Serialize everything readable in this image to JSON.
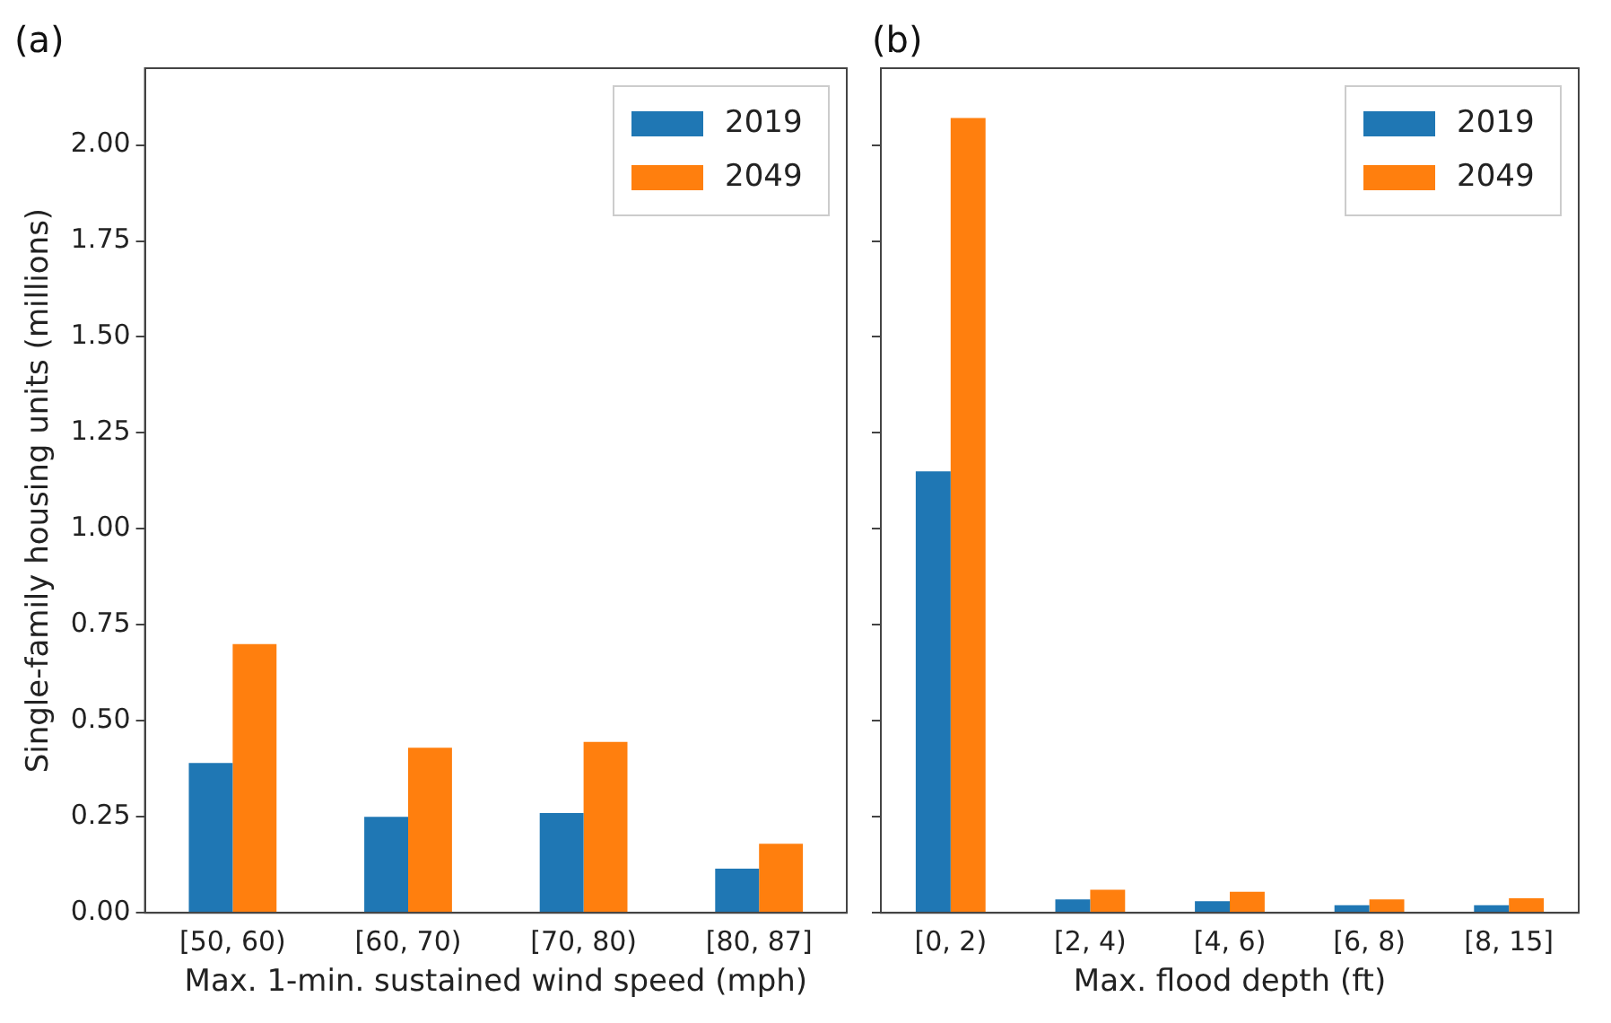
{
  "chart_data": [
    {
      "type": "bar",
      "title": "(a)",
      "xlabel": "Max. 1-min. sustained wind speed (mph)",
      "ylabel": "Single-family housing units (millions)",
      "categories": [
        "[50, 60)",
        "[60, 70)",
        "[70, 80)",
        "[80, 87]"
      ],
      "series": [
        {
          "name": "2019",
          "color": "#1f77b4",
          "values": [
            0.39,
            0.25,
            0.26,
            0.115
          ]
        },
        {
          "name": "2049",
          "color": "#ff7f0e",
          "values": [
            0.7,
            0.43,
            0.445,
            0.18
          ]
        }
      ],
      "ylim": [
        0,
        2.2
      ],
      "yticks": [
        {
          "value": 0,
          "label": "0.00"
        },
        {
          "value": 0.25,
          "label": "0.25"
        },
        {
          "value": 0.5,
          "label": "0.50"
        },
        {
          "value": 0.75,
          "label": "0.75"
        },
        {
          "value": 1,
          "label": "1.00"
        },
        {
          "value": 1.25,
          "label": "1.25"
        },
        {
          "value": 1.5,
          "label": "1.50"
        },
        {
          "value": 1.75,
          "label": "1.75"
        },
        {
          "value": 2,
          "label": "2.00"
        }
      ],
      "legend": "top right",
      "grid": false
    },
    {
      "type": "bar",
      "title": "(b)",
      "xlabel": "Max. flood depth (ft)",
      "categories": [
        "[0, 2)",
        "[2, 4)",
        "[4, 6)",
        "[6, 8)",
        "[8, 15]"
      ],
      "series": [
        {
          "name": "2019",
          "color": "#1f77b4",
          "values": [
            1.15,
            0.035,
            0.03,
            0.02,
            0.02
          ]
        },
        {
          "name": "2049",
          "color": "#ff7f0e",
          "values": [
            2.07,
            0.06,
            0.055,
            0.035,
            0.038
          ]
        }
      ],
      "ylim": [
        0,
        2.2
      ],
      "yticks": [
        {
          "value": 0,
          "label": null
        },
        {
          "value": 0.25,
          "label": null
        },
        {
          "value": 0.5,
          "label": null
        },
        {
          "value": 0.75,
          "label": null
        },
        {
          "value": 1,
          "label": null
        },
        {
          "value": 1.25,
          "label": null
        },
        {
          "value": 1.5,
          "label": null
        },
        {
          "value": 1.75,
          "label": null
        },
        {
          "value": 2,
          "label": null
        }
      ],
      "legend": "top right",
      "grid": false,
      "tick_labels": "x"
    }
  ]
}
